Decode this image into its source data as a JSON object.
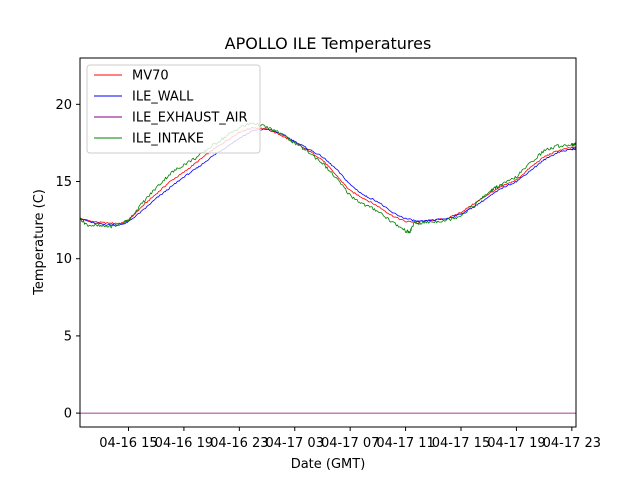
{
  "chart_data": {
    "type": "line",
    "title": "APOLLO ILE Temperatures",
    "xlabel": "Date (GMT)",
    "ylabel": "Temperature (C)",
    "x_unit": "hours since 04-16 00:00 GMT",
    "xlim": [
      11.5,
      47.3
    ],
    "ylim": [
      -0.9,
      23.0
    ],
    "x_ticks": [
      {
        "value": 15,
        "label": "04-16 15"
      },
      {
        "value": 19,
        "label": "04-16 19"
      },
      {
        "value": 23,
        "label": "04-16 23"
      },
      {
        "value": 27,
        "label": "04-17 03"
      },
      {
        "value": 31,
        "label": "04-17 07"
      },
      {
        "value": 35,
        "label": "04-17 11"
      },
      {
        "value": 39,
        "label": "04-17 15"
      },
      {
        "value": 43,
        "label": "04-17 19"
      },
      {
        "value": 47,
        "label": "04-17 23"
      }
    ],
    "y_ticks": [
      {
        "value": 0,
        "label": "0"
      },
      {
        "value": 5,
        "label": "5"
      },
      {
        "value": 10,
        "label": "10"
      },
      {
        "value": 15,
        "label": "15"
      },
      {
        "value": 20,
        "label": "20"
      }
    ],
    "legend_position": "top-left",
    "series": [
      {
        "name": "MV70",
        "color": "#ff0000",
        "points": [
          [
            11.5,
            12.6
          ],
          [
            12.5,
            12.4
          ],
          [
            13.5,
            12.3
          ],
          [
            14.5,
            12.3
          ],
          [
            15.0,
            12.5
          ],
          [
            16.0,
            13.4
          ],
          [
            17.0,
            14.2
          ],
          [
            18.0,
            15.0
          ],
          [
            19.0,
            15.6
          ],
          [
            20.0,
            16.3
          ],
          [
            21.0,
            17.0
          ],
          [
            22.0,
            17.6
          ],
          [
            23.0,
            18.2
          ],
          [
            24.0,
            18.5
          ],
          [
            25.0,
            18.4
          ],
          [
            26.0,
            18.0
          ],
          [
            27.0,
            17.5
          ],
          [
            28.0,
            17.0
          ],
          [
            29.0,
            16.4
          ],
          [
            30.0,
            15.4
          ],
          [
            31.0,
            14.4
          ],
          [
            32.0,
            13.9
          ],
          [
            33.0,
            13.4
          ],
          [
            34.0,
            12.8
          ],
          [
            35.0,
            12.4
          ],
          [
            36.0,
            12.4
          ],
          [
            37.0,
            12.5
          ],
          [
            38.0,
            12.6
          ],
          [
            39.0,
            13.0
          ],
          [
            40.0,
            13.6
          ],
          [
            41.0,
            14.2
          ],
          [
            42.0,
            14.7
          ],
          [
            43.0,
            15.1
          ],
          [
            44.0,
            15.9
          ],
          [
            45.0,
            16.6
          ],
          [
            46.0,
            17.0
          ],
          [
            47.0,
            17.2
          ],
          [
            47.3,
            17.2
          ]
        ]
      },
      {
        "name": "ILE_WALL",
        "color": "#0000ff",
        "points": [
          [
            11.5,
            12.6
          ],
          [
            12.5,
            12.3
          ],
          [
            13.5,
            12.2
          ],
          [
            14.5,
            12.2
          ],
          [
            15.0,
            12.4
          ],
          [
            16.0,
            13.1
          ],
          [
            17.0,
            13.9
          ],
          [
            18.0,
            14.6
          ],
          [
            19.0,
            15.3
          ],
          [
            20.0,
            15.9
          ],
          [
            21.0,
            16.6
          ],
          [
            22.0,
            17.2
          ],
          [
            23.0,
            17.8
          ],
          [
            24.0,
            18.3
          ],
          [
            25.0,
            18.4
          ],
          [
            26.0,
            18.1
          ],
          [
            27.0,
            17.6
          ],
          [
            28.0,
            17.1
          ],
          [
            29.0,
            16.6
          ],
          [
            30.0,
            15.8
          ],
          [
            31.0,
            14.8
          ],
          [
            32.0,
            14.1
          ],
          [
            33.0,
            13.7
          ],
          [
            34.0,
            13.0
          ],
          [
            35.0,
            12.6
          ],
          [
            36.0,
            12.4
          ],
          [
            37.0,
            12.5
          ],
          [
            38.0,
            12.6
          ],
          [
            39.0,
            12.9
          ],
          [
            40.0,
            13.4
          ],
          [
            41.0,
            14.0
          ],
          [
            42.0,
            14.6
          ],
          [
            43.0,
            15.0
          ],
          [
            44.0,
            15.7
          ],
          [
            45.0,
            16.4
          ],
          [
            46.0,
            16.9
          ],
          [
            47.0,
            17.1
          ],
          [
            47.3,
            17.1
          ]
        ]
      },
      {
        "name": "ILE_EXHAUST_AIR",
        "color": "#800080",
        "points": [
          [
            11.5,
            0.0
          ],
          [
            47.3,
            0.0
          ]
        ]
      },
      {
        "name": "ILE_INTAKE",
        "color": "#008000",
        "points": [
          [
            11.5,
            12.6
          ],
          [
            12.0,
            12.2
          ],
          [
            13.0,
            12.1
          ],
          [
            14.0,
            12.1
          ],
          [
            15.0,
            12.5
          ],
          [
            16.0,
            13.6
          ],
          [
            17.0,
            14.6
          ],
          [
            18.0,
            15.5
          ],
          [
            19.0,
            16.1
          ],
          [
            20.0,
            16.6
          ],
          [
            21.0,
            17.3
          ],
          [
            22.0,
            17.9
          ],
          [
            23.0,
            18.5
          ],
          [
            24.0,
            18.8
          ],
          [
            25.0,
            18.5
          ],
          [
            26.0,
            18.1
          ],
          [
            27.0,
            17.5
          ],
          [
            28.0,
            16.9
          ],
          [
            29.0,
            16.2
          ],
          [
            30.0,
            15.2
          ],
          [
            31.0,
            14.1
          ],
          [
            32.0,
            13.5
          ],
          [
            33.0,
            13.1
          ],
          [
            34.0,
            12.4
          ],
          [
            35.0,
            11.8
          ],
          [
            35.3,
            11.7
          ],
          [
            35.6,
            12.3
          ],
          [
            36.0,
            12.3
          ],
          [
            37.0,
            12.4
          ],
          [
            38.0,
            12.5
          ],
          [
            39.0,
            12.8
          ],
          [
            40.0,
            13.5
          ],
          [
            41.0,
            14.3
          ],
          [
            41.5,
            14.6
          ],
          [
            42.0,
            14.8
          ],
          [
            43.0,
            15.3
          ],
          [
            44.0,
            16.2
          ],
          [
            45.0,
            17.0
          ],
          [
            46.0,
            17.3
          ],
          [
            47.0,
            17.4
          ],
          [
            47.3,
            17.4
          ]
        ]
      }
    ]
  }
}
